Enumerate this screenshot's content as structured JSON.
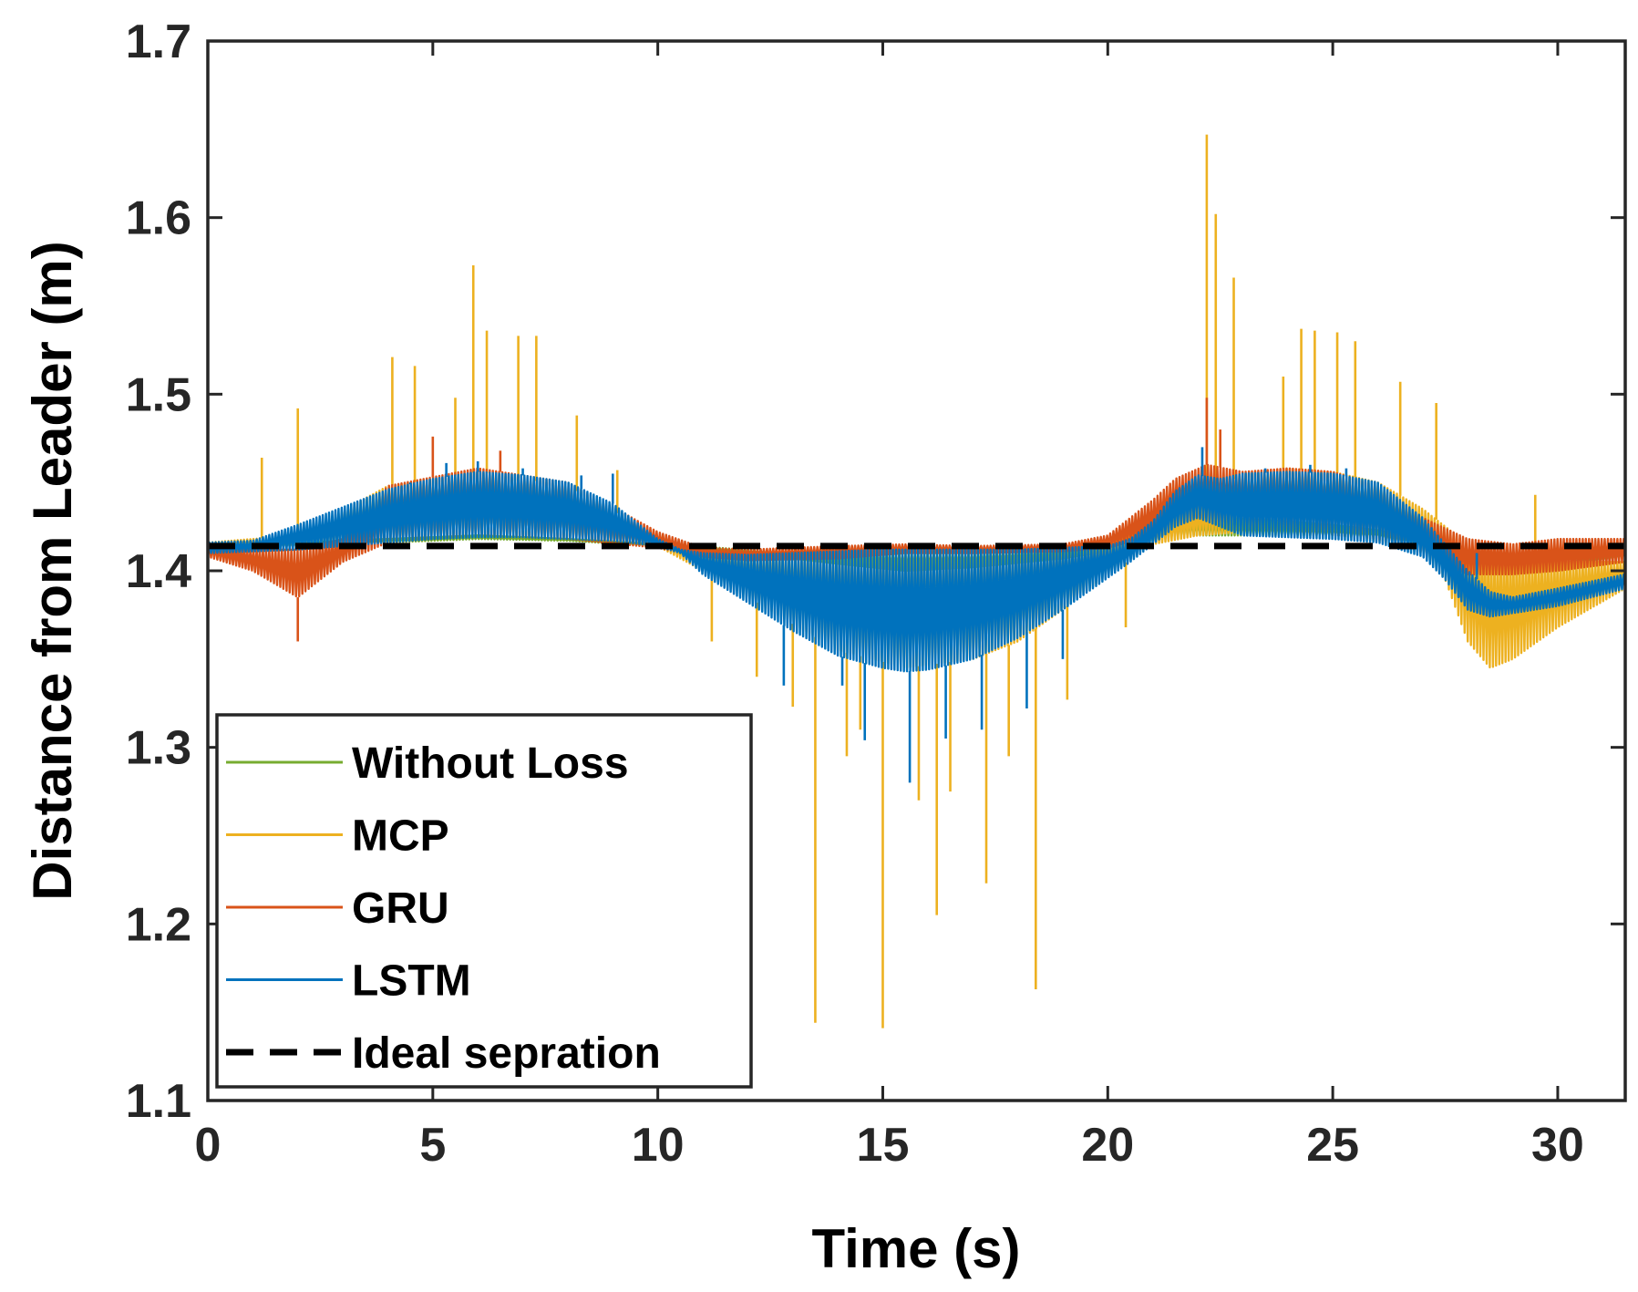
{
  "chart_data": {
    "type": "line",
    "xlabel": "Time (s)",
    "ylabel": "Distance from Leader (m)",
    "xlim": [
      0,
      31.5
    ],
    "ylim": [
      1.1,
      1.7
    ],
    "xticks": [
      0,
      5,
      10,
      15,
      20,
      25,
      30
    ],
    "yticks": [
      1.1,
      1.2,
      1.3,
      1.4,
      1.5,
      1.6,
      1.7
    ],
    "xtick_labels": [
      "0",
      "5",
      "10",
      "15",
      "20",
      "25",
      "30"
    ],
    "ytick_labels": [
      "1.1",
      "1.2",
      "1.3",
      "1.4",
      "1.5",
      "1.6",
      "1.7"
    ],
    "grid": false,
    "legend_position": "bottom-left",
    "series": [
      {
        "name": "Without Loss",
        "color": "#77AC30",
        "band_x": [
          0,
          2,
          4,
          6,
          8,
          10,
          12,
          14,
          15.5,
          17,
          19,
          20.5,
          21.5,
          22.5,
          24,
          25,
          26,
          27,
          28,
          28.5,
          30,
          31.5
        ],
        "band_low": [
          1.413,
          1.414,
          1.416,
          1.418,
          1.417,
          1.414,
          1.41,
          1.404,
          1.4,
          1.402,
          1.407,
          1.413,
          1.42,
          1.42,
          1.42,
          1.42,
          1.419,
          1.414,
          1.402,
          1.398,
          1.402,
          1.408
        ],
        "band_high": [
          1.415,
          1.416,
          1.418,
          1.42,
          1.418,
          1.415,
          1.412,
          1.41,
          1.41,
          1.41,
          1.412,
          1.416,
          1.43,
          1.43,
          1.428,
          1.426,
          1.423,
          1.418,
          1.406,
          1.402,
          1.404,
          1.41
        ]
      },
      {
        "name": "MCP",
        "color": "#EDB120",
        "band_x": [
          0,
          2,
          4,
          6,
          8,
          10,
          11,
          12,
          13,
          14,
          15.5,
          17,
          18,
          19,
          20,
          21,
          22,
          23,
          24,
          25,
          26,
          27,
          27.5,
          28,
          28.5,
          29,
          30,
          31.5
        ],
        "band_low": [
          1.413,
          1.414,
          1.418,
          1.42,
          1.419,
          1.414,
          1.4,
          1.385,
          1.37,
          1.355,
          1.345,
          1.35,
          1.36,
          1.378,
          1.398,
          1.415,
          1.42,
          1.422,
          1.422,
          1.42,
          1.417,
          1.41,
          1.395,
          1.36,
          1.345,
          1.35,
          1.368,
          1.39
        ],
        "band_high": [
          1.416,
          1.42,
          1.448,
          1.456,
          1.448,
          1.42,
          1.412,
          1.411,
          1.412,
          1.413,
          1.414,
          1.414,
          1.414,
          1.414,
          1.416,
          1.428,
          1.44,
          1.455,
          1.458,
          1.456,
          1.45,
          1.435,
          1.425,
          1.415,
          1.41,
          1.408,
          1.405,
          1.405
        ],
        "spikes": [
          [
            1.2,
            1.464
          ],
          [
            2,
            1.492
          ],
          [
            4.1,
            1.521
          ],
          [
            4.6,
            1.516
          ],
          [
            5.5,
            1.498
          ],
          [
            5.9,
            1.573
          ],
          [
            6.2,
            1.536
          ],
          [
            6.9,
            1.533
          ],
          [
            7.3,
            1.533
          ],
          [
            8.2,
            1.488
          ],
          [
            9.1,
            1.457
          ],
          [
            11.2,
            1.36
          ],
          [
            12.2,
            1.34
          ],
          [
            13.0,
            1.323
          ],
          [
            13.5,
            1.144
          ],
          [
            14.2,
            1.295
          ],
          [
            14.5,
            1.31
          ],
          [
            15.0,
            1.141
          ],
          [
            15.8,
            1.27
          ],
          [
            16.2,
            1.205
          ],
          [
            16.5,
            1.275
          ],
          [
            17.3,
            1.223
          ],
          [
            17.8,
            1.295
          ],
          [
            18.4,
            1.163
          ],
          [
            19.1,
            1.327
          ],
          [
            20.4,
            1.368
          ],
          [
            22.2,
            1.647
          ],
          [
            22.4,
            1.602
          ],
          [
            22.8,
            1.566
          ],
          [
            23.9,
            1.51
          ],
          [
            24.3,
            1.537
          ],
          [
            24.6,
            1.536
          ],
          [
            25.1,
            1.535
          ],
          [
            25.5,
            1.53
          ],
          [
            26.5,
            1.507
          ],
          [
            27.3,
            1.495
          ],
          [
            29.5,
            1.443
          ]
        ]
      },
      {
        "name": "GRU",
        "color": "#D95319",
        "band_x": [
          0,
          1,
          2,
          3,
          4,
          6,
          8,
          10,
          11,
          12,
          14,
          15.5,
          17,
          19,
          20,
          21,
          21.5,
          22.2,
          23,
          24,
          25,
          26,
          27,
          28,
          29,
          30,
          31.5
        ],
        "band_low": [
          1.408,
          1.4,
          1.385,
          1.405,
          1.416,
          1.42,
          1.418,
          1.413,
          1.408,
          1.406,
          1.407,
          1.41,
          1.41,
          1.411,
          1.413,
          1.42,
          1.43,
          1.43,
          1.425,
          1.422,
          1.42,
          1.418,
          1.41,
          1.398,
          1.398,
          1.4,
          1.405
        ],
        "band_high": [
          1.415,
          1.412,
          1.412,
          1.418,
          1.448,
          1.458,
          1.45,
          1.422,
          1.413,
          1.412,
          1.414,
          1.415,
          1.414,
          1.415,
          1.42,
          1.44,
          1.452,
          1.46,
          1.456,
          1.458,
          1.456,
          1.448,
          1.43,
          1.418,
          1.415,
          1.418,
          1.418
        ],
        "spikes": [
          [
            2,
            1.36
          ],
          [
            5.0,
            1.476
          ],
          [
            6.5,
            1.468
          ],
          [
            22.2,
            1.498
          ],
          [
            22.5,
            1.48
          ]
        ]
      },
      {
        "name": "LSTM",
        "color": "#0072BD",
        "band_x": [
          0,
          1,
          2,
          3,
          4,
          5,
          6,
          7,
          8,
          9,
          10,
          10.5,
          11,
          12,
          13,
          14,
          15,
          15.5,
          16,
          17,
          18,
          19,
          20,
          20.5,
          21,
          21.5,
          22,
          22.5,
          23,
          24,
          25,
          26,
          27,
          27.5,
          28,
          28.5,
          29,
          30,
          31.5
        ],
        "band_low": [
          1.41,
          1.411,
          1.412,
          1.414,
          1.416,
          1.418,
          1.419,
          1.419,
          1.418,
          1.417,
          1.414,
          1.41,
          1.398,
          1.382,
          1.366,
          1.352,
          1.345,
          1.343,
          1.344,
          1.35,
          1.362,
          1.378,
          1.396,
          1.405,
          1.415,
          1.425,
          1.43,
          1.425,
          1.42,
          1.419,
          1.418,
          1.416,
          1.408,
          1.395,
          1.378,
          1.374,
          1.376,
          1.38,
          1.39
        ],
        "band_high": [
          1.416,
          1.417,
          1.426,
          1.436,
          1.446,
          1.452,
          1.456,
          1.454,
          1.45,
          1.438,
          1.418,
          1.412,
          1.41,
          1.409,
          1.41,
          1.411,
          1.412,
          1.412,
          1.412,
          1.412,
          1.412,
          1.413,
          1.414,
          1.418,
          1.428,
          1.445,
          1.454,
          1.452,
          1.455,
          1.456,
          1.455,
          1.45,
          1.43,
          1.415,
          1.4,
          1.388,
          1.385,
          1.39,
          1.398
        ],
        "spikes": [
          [
            4.5,
            1.45
          ],
          [
            5.3,
            1.461
          ],
          [
            6.0,
            1.462
          ],
          [
            7.0,
            1.458
          ],
          [
            8.3,
            1.454
          ],
          [
            9.0,
            1.455
          ],
          [
            12.8,
            1.335
          ],
          [
            14.1,
            1.335
          ],
          [
            14.6,
            1.304
          ],
          [
            15.6,
            1.28
          ],
          [
            16.4,
            1.305
          ],
          [
            17.2,
            1.31
          ],
          [
            18.2,
            1.322
          ],
          [
            19.0,
            1.35
          ],
          [
            22.1,
            1.47
          ],
          [
            23.5,
            1.458
          ],
          [
            24.5,
            1.46
          ],
          [
            25.3,
            1.458
          ],
          [
            27.8,
            1.398
          ],
          [
            28.2,
            1.41
          ]
        ]
      },
      {
        "name": "Ideal sepration",
        "color": "#000000",
        "dashed": true,
        "x": [
          0,
          31.5
        ],
        "y": [
          1.414,
          1.414
        ]
      }
    ]
  }
}
